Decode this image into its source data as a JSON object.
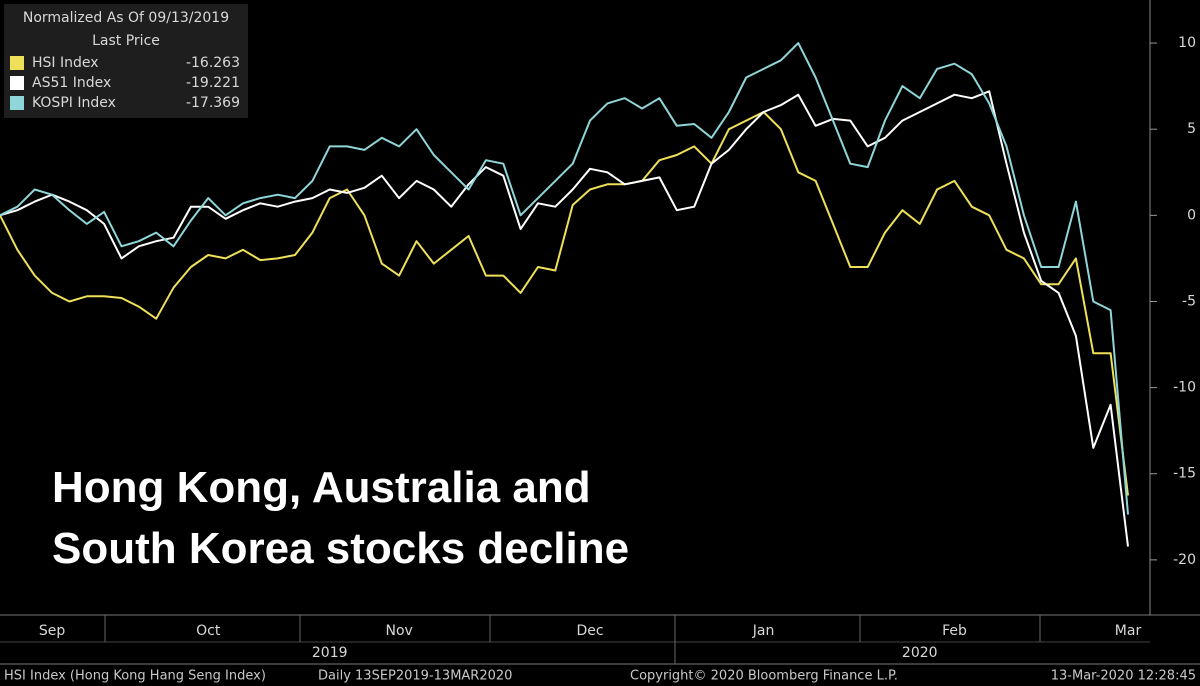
{
  "chart_data": {
    "type": "line",
    "legend_title": [
      "Normalized As Of 09/13/2019",
      "Last Price"
    ],
    "annotation": [
      "Hong Kong, Australia and",
      "South Korea stocks decline"
    ],
    "categories": [
      null,
      null,
      null,
      "Sep",
      null,
      null,
      null,
      null,
      null,
      null,
      null,
      null,
      "Oct",
      null,
      null,
      null,
      null,
      null,
      null,
      null,
      null,
      null,
      null,
      "Nov",
      null,
      null,
      null,
      null,
      null,
      null,
      null,
      null,
      null,
      null,
      "Dec",
      null,
      null,
      null,
      null,
      null,
      null,
      null,
      null,
      null,
      "Jan",
      null,
      null,
      null,
      null,
      null,
      null,
      null,
      null,
      null,
      null,
      "Feb",
      null,
      null,
      null,
      null,
      null,
      null,
      null,
      null,
      null,
      "Mar"
    ],
    "years": [
      null,
      null,
      null,
      null,
      null,
      null,
      null,
      null,
      null,
      null,
      null,
      null,
      null,
      null,
      null,
      null,
      null,
      null,
      null,
      "2019",
      null,
      null,
      null,
      null,
      null,
      null,
      null,
      null,
      null,
      null,
      null,
      null,
      null,
      null,
      null,
      null,
      null,
      null,
      null,
      null,
      null,
      null,
      null,
      null,
      null,
      null,
      null,
      null,
      null,
      null,
      null,
      null,
      null,
      "2020",
      null,
      null,
      null,
      null,
      null,
      null,
      null,
      null,
      null,
      null,
      null,
      null
    ],
    "series": [
      {
        "name": "HSI Index",
        "color": "#efe05a",
        "values": [
          0,
          -2,
          -3.5,
          -4.5,
          -5,
          -4.7,
          -4.7,
          -4.8,
          -5.3,
          -6,
          -4.2,
          -3,
          -2.3,
          -2.5,
          -2,
          -2.6,
          -2.5,
          -2.3,
          -1,
          1,
          1.5,
          0,
          -2.8,
          -3.5,
          -1.5,
          -2.8,
          -2,
          -1.2,
          -3.5,
          -3.5,
          -4.5,
          -3,
          -3.2,
          0.6,
          1.5,
          1.8,
          1.8,
          2,
          3.2,
          3.5,
          4,
          3,
          5,
          5.5,
          6,
          5,
          2.5,
          2,
          -0.5,
          -3,
          -3,
          -1,
          0.3,
          -0.5,
          1.5,
          2,
          0.5,
          0,
          -2,
          -2.5,
          -4,
          -4,
          -2.5,
          -8,
          -8,
          -16.263
        ]
      },
      {
        "name": "AS51 Index",
        "color": "#ffffff",
        "values": [
          0,
          0.3,
          0.8,
          1.2,
          0.8,
          0.3,
          -0.5,
          -2.5,
          -1.8,
          -1.5,
          -1.3,
          0.5,
          0.5,
          -0.2,
          0.3,
          0.7,
          0.5,
          0.8,
          1,
          1.5,
          1.3,
          1.6,
          2.3,
          1,
          2,
          1.5,
          0.5,
          1.8,
          2.8,
          2.3,
          -0.8,
          0.7,
          0.5,
          1.5,
          2.7,
          2.5,
          1.8,
          2,
          2.2,
          0.3,
          0.5,
          3,
          3.8,
          5,
          6,
          6.4,
          7,
          5.2,
          5.6,
          5.5,
          4,
          4.5,
          5.5,
          6,
          6.5,
          7,
          6.8,
          7.2,
          3,
          -1,
          -3.8,
          -4.5,
          -7,
          -13.5,
          -11,
          -19.221
        ]
      },
      {
        "name": "KOSPI Index",
        "color": "#8fd6d9",
        "values": [
          0,
          0.5,
          1.5,
          1.2,
          0.3,
          -0.5,
          0.2,
          -1.8,
          -1.5,
          -1,
          -1.8,
          -0.3,
          1,
          0,
          0.7,
          1,
          1.2,
          1,
          2,
          4,
          4,
          3.8,
          4.5,
          4,
          5,
          3.5,
          2.5,
          1.5,
          3.2,
          3,
          0,
          1,
          2,
          3,
          5.5,
          6.5,
          6.8,
          6.2,
          6.8,
          5.2,
          5.3,
          4.5,
          6,
          8,
          8.5,
          9,
          10,
          8,
          5.5,
          3,
          2.8,
          5.5,
          7.5,
          6.8,
          8.5,
          8.8,
          8.2,
          6.5,
          4,
          0,
          -3,
          -3,
          0.8,
          -5,
          -5.5,
          -17.369
        ]
      }
    ],
    "ylim": [
      -23.2,
      12.5
    ],
    "yticks": [
      10,
      5,
      0,
      -5,
      -10,
      -15,
      -20
    ],
    "grid": false,
    "footer": {
      "security": "HSI Index (Hong Kong Hang Seng Index)",
      "range": "Daily 13SEP2019-13MAR2020",
      "copyright": "Copyright© 2020 Bloomberg Finance L.P.",
      "timestamp": "13-Mar-2020 12:28:45"
    }
  }
}
